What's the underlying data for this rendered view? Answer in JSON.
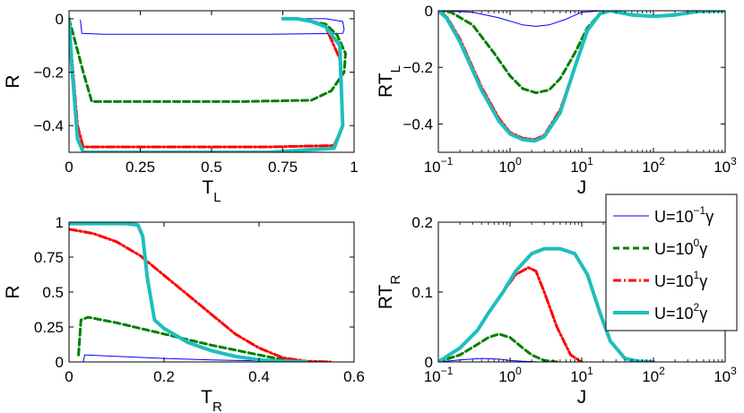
{
  "legend": {
    "position": "upper-right of bottom-right panel",
    "entries": [
      {
        "prefix": "U=10",
        "exp": "−1",
        "suffix": "γ",
        "color": "#0000ff",
        "style": "solid-thin"
      },
      {
        "prefix": "U=10",
        "exp": "0",
        "suffix": "γ",
        "color": "#007f00",
        "style": "dashed"
      },
      {
        "prefix": "U=10",
        "exp": "1",
        "suffix": "γ",
        "color": "#ff0000",
        "style": "dashdot"
      },
      {
        "prefix": "U=10",
        "exp": "2",
        "suffix": "γ",
        "color": "#1ebebe",
        "style": "solid-thick"
      }
    ]
  },
  "chart_data": [
    {
      "id": "p1",
      "type": "line",
      "xlabel_main": "T",
      "xlabel_sub": "L",
      "ylabel_main": "R",
      "ylabel_sub": "",
      "xscale": "linear",
      "xlim": [
        0,
        1
      ],
      "ylim": [
        -0.5,
        0.03
      ],
      "xticks": [
        "0",
        "0.25",
        "0.5",
        "0.75",
        "1"
      ],
      "xtick_values": [
        0,
        0.25,
        0.5,
        0.75,
        1
      ],
      "yticks": [
        "0",
        "−0.2",
        "−0.4"
      ],
      "ytick_values": [
        0,
        -0.2,
        -0.4
      ],
      "series": [
        {
          "name": "U=10^-1 γ",
          "x": [
            0.04,
            0.045,
            0.12,
            0.4,
            0.7,
            0.96,
            0.965,
            0.96,
            0.9,
            0.75
          ],
          "y": [
            -0.005,
            -0.055,
            -0.058,
            -0.058,
            -0.058,
            -0.055,
            -0.04,
            -0.01,
            0.0,
            0.0
          ]
        },
        {
          "name": "U=10^0 γ",
          "x": [
            0.0,
            0.02,
            0.05,
            0.08,
            0.3,
            0.6,
            0.85,
            0.92,
            0.965,
            0.97,
            0.94,
            0.9,
            0.85,
            0.8,
            0.75
          ],
          "y": [
            0.0,
            -0.08,
            -0.2,
            -0.31,
            -0.31,
            -0.31,
            -0.305,
            -0.27,
            -0.2,
            -0.13,
            -0.06,
            -0.02,
            -0.01,
            0.0,
            0.0
          ]
        },
        {
          "name": "U=10^1 γ",
          "x": [
            0.0,
            0.01,
            0.03,
            0.05,
            0.3,
            0.7,
            0.93,
            0.96,
            0.95,
            0.9,
            0.85,
            0.8,
            0.75
          ],
          "y": [
            0.0,
            -0.15,
            -0.4,
            -0.48,
            -0.48,
            -0.48,
            -0.475,
            -0.4,
            -0.15,
            -0.03,
            -0.01,
            0.0,
            0.0
          ]
        },
        {
          "name": "U=10^2 γ",
          "x": [
            0.0,
            0.01,
            0.03,
            0.05,
            0.3,
            0.7,
            0.93,
            0.96,
            0.95,
            0.9,
            0.85,
            0.8,
            0.75
          ],
          "y": [
            0.0,
            -0.18,
            -0.45,
            -0.5,
            -0.5,
            -0.5,
            -0.485,
            -0.4,
            -0.1,
            -0.03,
            -0.01,
            0.0,
            0.0
          ]
        }
      ]
    },
    {
      "id": "p2",
      "type": "line",
      "xlabel_main": "J",
      "xlabel_sub": "",
      "ylabel_main": "RT",
      "ylabel_sub": "L",
      "xscale": "log",
      "xlim": [
        0.1,
        1000
      ],
      "ylim": [
        -0.5,
        0.0
      ],
      "xticks": [
        "10",
        "10",
        "10",
        "10",
        "10"
      ],
      "xtick_exps": [
        "−1",
        "0",
        "1",
        "2",
        "3"
      ],
      "xtick_values": [
        0.1,
        1,
        10,
        100,
        1000
      ],
      "yticks": [
        "0",
        "−0.2",
        "−0.4"
      ],
      "ytick_values": [
        0,
        -0.2,
        -0.4
      ],
      "series": [
        {
          "name": "U=10^-1 γ",
          "x": [
            0.1,
            0.3,
            0.7,
            1.5,
            2.3,
            3.5,
            6,
            10,
            20
          ],
          "y": [
            0.0,
            -0.005,
            -0.025,
            -0.05,
            -0.055,
            -0.05,
            -0.03,
            -0.005,
            0.0
          ]
        },
        {
          "name": "U=10^0 γ",
          "x": [
            0.1,
            0.15,
            0.3,
            0.6,
            1.0,
            1.5,
            2.3,
            3.5,
            5,
            8,
            12,
            18,
            25
          ],
          "y": [
            0.0,
            -0.005,
            -0.05,
            -0.15,
            -0.23,
            -0.275,
            -0.29,
            -0.28,
            -0.24,
            -0.15,
            -0.06,
            -0.01,
            0.0
          ]
        },
        {
          "name": "U=10^1 γ",
          "x": [
            0.1,
            0.13,
            0.2,
            0.4,
            0.7,
            1.0,
            1.5,
            2.2,
            3.0,
            5,
            8,
            12,
            18,
            25
          ],
          "y": [
            0.0,
            -0.02,
            -0.1,
            -0.27,
            -0.38,
            -0.43,
            -0.45,
            -0.455,
            -0.44,
            -0.35,
            -0.2,
            -0.07,
            -0.01,
            0.0
          ]
        },
        {
          "name": "U=10^2 γ",
          "x": [
            0.1,
            0.13,
            0.2,
            0.4,
            0.7,
            1.0,
            1.5,
            2.2,
            3.0,
            5,
            8,
            12,
            18,
            25,
            50,
            100,
            200,
            400,
            1000
          ],
          "y": [
            0.0,
            -0.025,
            -0.11,
            -0.28,
            -0.39,
            -0.435,
            -0.455,
            -0.46,
            -0.445,
            -0.36,
            -0.2,
            -0.07,
            -0.01,
            0.0,
            -0.015,
            -0.02,
            -0.015,
            -0.003,
            0.0
          ]
        }
      ]
    },
    {
      "id": "p3",
      "type": "line",
      "xlabel_main": "T",
      "xlabel_sub": "R",
      "ylabel_main": "R",
      "ylabel_sub": "",
      "xscale": "linear",
      "xlim": [
        0,
        0.6
      ],
      "ylim": [
        0,
        1
      ],
      "xticks": [
        "0",
        "0.2",
        "0.4",
        "0.6"
      ],
      "xtick_values": [
        0,
        0.2,
        0.4,
        0.6
      ],
      "yticks": [
        "0",
        "0.25",
        "0.5",
        "0.75",
        "1"
      ],
      "ytick_values": [
        0,
        0.25,
        0.5,
        0.75,
        1
      ],
      "series": [
        {
          "name": "U=10^-1 γ",
          "x": [
            0.03,
            0.033,
            0.04,
            0.1,
            0.2,
            0.3,
            0.4,
            0.5,
            0.55
          ],
          "y": [
            0.0,
            0.05,
            0.05,
            0.04,
            0.025,
            0.015,
            0.008,
            0.003,
            0.0
          ]
        },
        {
          "name": "U=10^0 γ",
          "x": [
            0.02,
            0.025,
            0.04,
            0.1,
            0.2,
            0.3,
            0.4,
            0.46,
            0.5
          ],
          "y": [
            0.05,
            0.3,
            0.32,
            0.28,
            0.2,
            0.12,
            0.05,
            0.01,
            0.0
          ]
        },
        {
          "name": "U=10^1 γ",
          "x": [
            0.0,
            0.05,
            0.1,
            0.15,
            0.2,
            0.25,
            0.3,
            0.35,
            0.4,
            0.45,
            0.5,
            0.55
          ],
          "y": [
            0.95,
            0.92,
            0.86,
            0.76,
            0.62,
            0.48,
            0.34,
            0.2,
            0.1,
            0.03,
            0.005,
            0.0
          ]
        },
        {
          "name": "U=10^2 γ",
          "x": [
            0.0,
            0.05,
            0.12,
            0.145,
            0.155,
            0.165,
            0.18,
            0.2,
            0.25,
            0.3,
            0.35,
            0.4,
            0.45,
            0.5
          ],
          "y": [
            0.99,
            0.99,
            0.99,
            0.98,
            0.9,
            0.6,
            0.3,
            0.24,
            0.14,
            0.08,
            0.04,
            0.015,
            0.005,
            0.0
          ]
        }
      ]
    },
    {
      "id": "p4",
      "type": "line",
      "xlabel_main": "J",
      "xlabel_sub": "",
      "ylabel_main": "RT",
      "ylabel_sub": "R",
      "xscale": "log",
      "xlim": [
        0.1,
        1000
      ],
      "ylim": [
        0,
        0.2
      ],
      "xticks": [
        "10",
        "10",
        "10",
        "10",
        "10"
      ],
      "xtick_exps": [
        "−1",
        "0",
        "1",
        "2",
        "3"
      ],
      "xtick_values": [
        0.1,
        1,
        10,
        100,
        1000
      ],
      "yticks": [
        "0",
        "0.1",
        "0.2"
      ],
      "ytick_values": [
        0,
        0.1,
        0.2
      ],
      "series": [
        {
          "name": "U=10^-1 γ",
          "x": [
            0.1,
            0.2,
            0.4,
            0.7,
            1.0,
            1.5,
            2.5
          ],
          "y": [
            0.0,
            0.003,
            0.005,
            0.004,
            0.002,
            0.001,
            0.0
          ]
        },
        {
          "name": "U=10^0 γ",
          "x": [
            0.1,
            0.2,
            0.35,
            0.5,
            0.7,
            1.0,
            1.5,
            2.0,
            3.0,
            4.5
          ],
          "y": [
            0.0,
            0.01,
            0.025,
            0.035,
            0.04,
            0.035,
            0.02,
            0.01,
            0.002,
            0.0
          ]
        },
        {
          "name": "U=10^1 γ",
          "x": [
            0.1,
            0.2,
            0.35,
            0.5,
            0.8,
            1.2,
            1.8,
            2.3,
            3.0,
            4.5,
            7,
            10
          ],
          "y": [
            0.0,
            0.02,
            0.045,
            0.07,
            0.1,
            0.125,
            0.135,
            0.13,
            0.1,
            0.05,
            0.01,
            0.0
          ]
        },
        {
          "name": "U=10^2 γ",
          "x": [
            0.1,
            0.2,
            0.35,
            0.5,
            0.8,
            1.2,
            2.0,
            3.0,
            5,
            8,
            12,
            18,
            25,
            40,
            60,
            100
          ],
          "y": [
            0.0,
            0.02,
            0.045,
            0.07,
            0.1,
            0.13,
            0.155,
            0.162,
            0.162,
            0.155,
            0.125,
            0.07,
            0.03,
            0.005,
            0.001,
            0.0
          ]
        }
      ]
    }
  ]
}
